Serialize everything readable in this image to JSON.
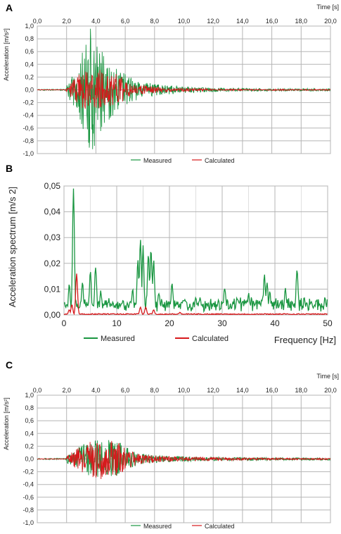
{
  "chart_data": [
    {
      "panel": "A",
      "type": "line",
      "xlabel": "Time [s]",
      "ylabel": "Acceleration [m/s²]",
      "xlim": [
        0,
        20
      ],
      "ylim": [
        -1,
        1
      ],
      "x_ticks": [
        "0,0",
        "2,0",
        "4,0",
        "6,0",
        "8,0",
        "10,0",
        "12,0",
        "14,0",
        "16,0",
        "18,0",
        "20,0"
      ],
      "y_ticks": [
        "1,0",
        "0,8",
        "0,6",
        "0,4",
        "0,2",
        "0,0",
        "-0,2",
        "-0,4",
        "-0,6",
        "-0,8",
        "-1,0"
      ],
      "grid": true,
      "legend_position": "bottom",
      "series": [
        {
          "name": "Measured",
          "color": "#1a9641",
          "envelope": {
            "x": [
              0,
              1.9,
              2.1,
              2.6,
              3.0,
              3.4,
              3.7,
              4.2,
              4.7,
              5.2,
              5.7,
              6.2,
              7,
              8,
              9,
              10,
              11,
              12,
              13,
              14,
              16,
              18,
              20
            ],
            "y": [
              0.01,
              0.01,
              0.12,
              0.3,
              0.55,
              0.85,
              1.0,
              0.7,
              0.55,
              0.4,
              0.3,
              0.22,
              0.14,
              0.09,
              0.07,
              0.05,
              0.04,
              0.035,
              0.03,
              0.025,
              0.02,
              0.02,
              0.02
            ]
          }
        },
        {
          "name": "Calculated",
          "color": "#d7191c",
          "envelope": {
            "x": [
              0,
              1.9,
              2.1,
              2.6,
              3.0,
              3.5,
              4.0,
              4.5,
              5.0,
              5.5,
              5.8,
              6.0,
              7,
              8,
              9,
              10,
              12,
              14,
              16,
              18,
              20
            ],
            "y": [
              0,
              0,
              0.08,
              0.18,
              0.28,
              0.32,
              0.33,
              0.3,
              0.28,
              0.25,
              0.2,
              0.12,
              0.07,
              0.05,
              0.035,
              0.025,
              0.015,
              0.01,
              0.01,
              0.008,
              0.008
            ]
          }
        }
      ]
    },
    {
      "panel": "B",
      "type": "line",
      "xlabel": "Frequency [Hz]",
      "ylabel": "Acceleration  spectrum  [m/s 2]",
      "xlim": [
        0,
        50
      ],
      "ylim": [
        0,
        0.05
      ],
      "x_ticks": [
        "0",
        "10",
        "20",
        "30",
        "40",
        "50"
      ],
      "y_ticks": [
        "0,05",
        "0,04",
        "0,03",
        "0,02",
        "0,01",
        "0,00"
      ],
      "grid": true,
      "legend_position": "bottom",
      "series": [
        {
          "name": "Measured",
          "color": "#1a9641",
          "peaks": {
            "x": [
              0.5,
              1,
              1.8,
              2.2,
              2.5,
              3.5,
              5,
              6,
              7,
              13,
              14,
              14.5,
              15,
              16,
              16.5,
              17,
              18,
              20.5,
              23,
              25,
              27,
              30.5,
              33,
              35,
              38,
              38.5,
              39,
              42,
              44.2,
              46,
              49.5
            ],
            "y": [
              0.004,
              0.012,
              0.049,
              0.006,
              0.003,
              0.012,
              0.016,
              0.018,
              0.008,
              0.009,
              0.02,
              0.028,
              0.025,
              0.022,
              0.024,
              0.02,
              0.008,
              0.011,
              0.005,
              0.006,
              0.003,
              0.01,
              0.005,
              0.007,
              0.014,
              0.012,
              0.008,
              0.009,
              0.017,
              0.004,
              0.006
            ]
          },
          "baseline": 0.003
        },
        {
          "name": "Calculated",
          "color": "#d7191c",
          "peaks": {
            "x": [
              1,
              1.5,
              2.4,
              14.5,
              15.5,
              17,
              22
            ],
            "y": [
              0.002,
              0.004,
              0.016,
              0.003,
              0.003,
              0.002,
              0.001
            ]
          },
          "baseline": 0.0003
        }
      ]
    },
    {
      "panel": "C",
      "type": "line",
      "xlabel": "Time  [s]",
      "ylabel": "Acceleration [m/s²]",
      "xlim": [
        0,
        20
      ],
      "ylim": [
        -1,
        1
      ],
      "x_ticks": [
        "0,0",
        "2,0",
        "4,0",
        "6,0",
        "8,0",
        "10,0",
        "12,0",
        "14,0",
        "16,0",
        "18,0",
        "20,0"
      ],
      "y_ticks": [
        "1,0",
        "0,8",
        "0,6",
        "0,4",
        "0,2",
        "0,0",
        "-0,2",
        "-0,4",
        "-0,6",
        "-0,8",
        "-1,0"
      ],
      "grid": true,
      "legend_position": "bottom",
      "series": [
        {
          "name": "Measured",
          "color": "#1a9641",
          "envelope": {
            "x": [
              0,
              1.9,
              2.1,
              2.6,
              3.0,
              3.5,
              4.0,
              4.5,
              5.0,
              5.5,
              6.0,
              6.5,
              7,
              8,
              9,
              10,
              12,
              14,
              16,
              18,
              20
            ],
            "y": [
              0.01,
              0.01,
              0.08,
              0.15,
              0.22,
              0.27,
              0.33,
              0.3,
              0.3,
              0.28,
              0.2,
              0.13,
              0.09,
              0.06,
              0.05,
              0.04,
              0.03,
              0.025,
              0.02,
              0.02,
              0.02
            ]
          }
        },
        {
          "name": "Calculated",
          "color": "#d7191c",
          "envelope": {
            "x": [
              0,
              1.9,
              2.1,
              2.6,
              3.0,
              3.5,
              4.0,
              4.5,
              5.0,
              5.5,
              6.0,
              6.5,
              7,
              8,
              9,
              10,
              12,
              14,
              16,
              18,
              20
            ],
            "y": [
              0,
              0,
              0.07,
              0.14,
              0.2,
              0.25,
              0.35,
              0.3,
              0.29,
              0.27,
              0.18,
              0.12,
              0.08,
              0.055,
              0.045,
              0.035,
              0.025,
              0.02,
              0.015,
              0.012,
              0.01
            ]
          }
        }
      ]
    }
  ]
}
